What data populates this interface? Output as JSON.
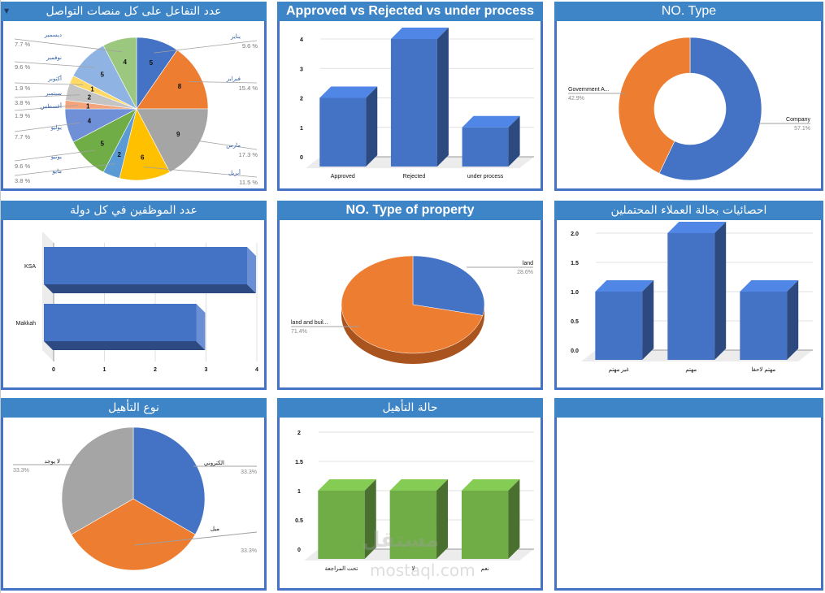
{
  "colors": {
    "header": "#3d85c6",
    "border": "#4472c4",
    "blue": "#4472c4",
    "orange": "#ed7d31",
    "gray": "#a5a5a5",
    "yellow": "#ffc000",
    "lightblue": "#5b9bd5",
    "green": "#70ad47",
    "label_blue": "#2e5fa8"
  },
  "watermark": {
    "arabic": "مستقل",
    "latin": "mostaql.com"
  },
  "chart_data": [
    {
      "id": "social",
      "type": "pie",
      "title": "عدد التفاعل على كل منصات التواصل",
      "categories": [
        "يناير",
        "فبراير",
        "مارس",
        "أبريل",
        "مايو",
        "يونيو",
        "يوليو",
        "أغسطس",
        "سبتمبر",
        "أكتوبر",
        "نوفمبر",
        "ديسمبر"
      ],
      "values": [
        5,
        8,
        9,
        6,
        2,
        5,
        4,
        1,
        2,
        1,
        5,
        4
      ],
      "percent_labels": [
        "9.6 %",
        "15.4 %",
        "17.3 %",
        "11.5 %",
        "3.8 %",
        "9.6 %",
        "7.7 %",
        "1.9 %",
        "3.8 %",
        "1.9 %",
        "9.6 %",
        "7.7 %"
      ],
      "colors": [
        "#4472c4",
        "#ed7d31",
        "#a5a5a5",
        "#ffc000",
        "#5b9bd5",
        "#70ad47",
        "#6f8fd6",
        "#f4a47a",
        "#c4c4c4",
        "#ffd966",
        "#8fb4e3",
        "#9bc87e"
      ]
    },
    {
      "id": "approval",
      "type": "bar",
      "title": "Approved  vs  Rejected  vs  under process",
      "categories": [
        "Approved",
        "Rejected",
        "under process"
      ],
      "values": [
        2,
        4,
        1
      ],
      "ylim": [
        0,
        4
      ],
      "yticks": [
        "0",
        "1",
        "2",
        "3",
        "4"
      ],
      "grid": true
    },
    {
      "id": "no_type",
      "type": "pie",
      "subtype": "doughnut",
      "title": "NO. Type",
      "categories": [
        "Company",
        "Government A..."
      ],
      "values": [
        57.1,
        42.9
      ],
      "percent_labels": [
        "57.1%",
        "42.9%"
      ],
      "colors": [
        "#4472c4",
        "#ed7d31"
      ]
    },
    {
      "id": "employees",
      "type": "bar",
      "orientation": "horizontal",
      "title": "عدد الموظفين في كل دولة",
      "categories": [
        "KSA",
        "Makkah"
      ],
      "values": [
        4,
        3
      ],
      "xlim": [
        0,
        4
      ],
      "xticks": [
        "0",
        "1",
        "2",
        "3",
        "4"
      ],
      "grid": true
    },
    {
      "id": "property",
      "type": "pie",
      "subtype": "3d",
      "title": "NO.  Type of property",
      "categories": [
        "land",
        "land and buil..."
      ],
      "values": [
        28.6,
        71.4
      ],
      "percent_labels": [
        "28.6%",
        "71.4%"
      ],
      "colors": [
        "#4472c4",
        "#ed7d31"
      ]
    },
    {
      "id": "prospects",
      "type": "bar",
      "title": "احصائيات بحالة العملاء المحتملين",
      "categories": [
        "غير مهتم",
        "مهتم",
        "مهتم لاحقا"
      ],
      "values": [
        1,
        2,
        1
      ],
      "ylim": [
        0,
        2
      ],
      "yticks": [
        "0.0",
        "0.5",
        "1.0",
        "1.5",
        "2.0"
      ],
      "grid": true
    },
    {
      "id": "qual_type",
      "type": "pie",
      "title": "نوع التأهيل",
      "categories": [
        "الكتروني",
        "ميل",
        "لا يوجد"
      ],
      "values": [
        33.3,
        33.3,
        33.3
      ],
      "percent_labels": [
        "33.3%",
        "33.3%",
        "33.3%"
      ],
      "colors": [
        "#4472c4",
        "#ed7d31",
        "#a5a5a5"
      ]
    },
    {
      "id": "qual_status",
      "type": "bar",
      "title": "حالة التأهيل",
      "categories": [
        "تحت المراجعة",
        "لا",
        "نعم"
      ],
      "values": [
        1,
        1,
        1
      ],
      "ylim": [
        0,
        2
      ],
      "yticks": [
        "0",
        "0.5",
        "1",
        "1.5",
        "2"
      ],
      "grid": true,
      "color": "#70ad47"
    },
    {
      "id": "empty",
      "type": "table",
      "title": ""
    }
  ]
}
